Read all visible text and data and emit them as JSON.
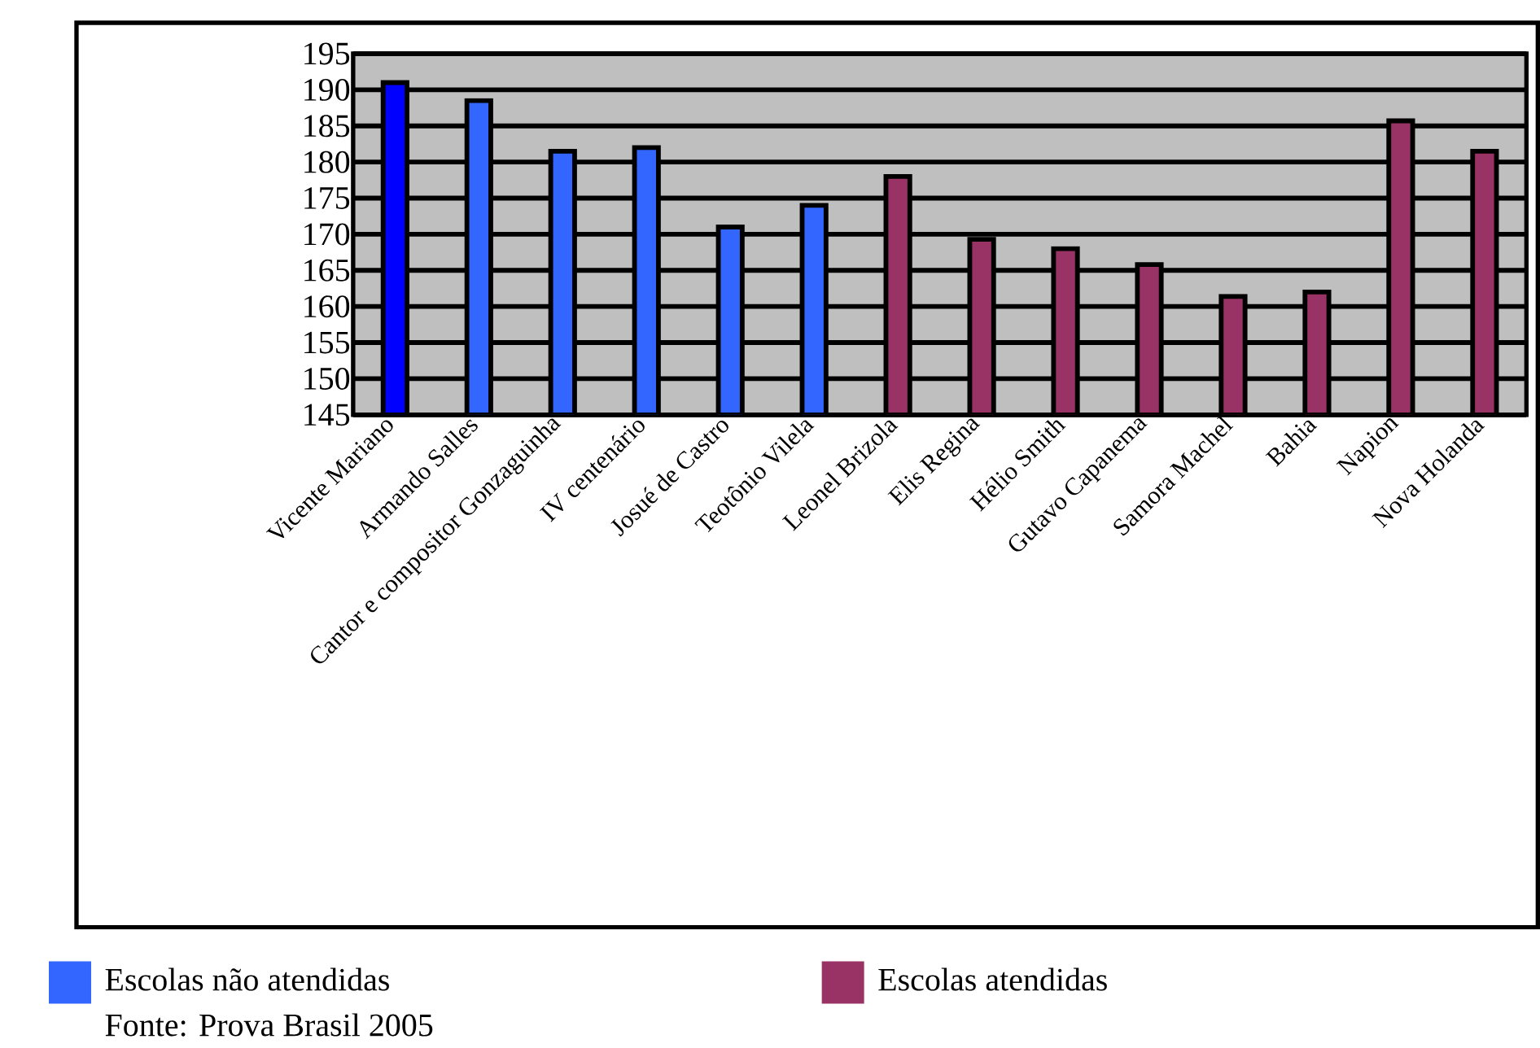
{
  "chart_data": {
    "type": "bar",
    "categories": [
      "Vicente Mariano",
      "Armando Salles",
      "Cantor e compositor Gonzaguinha",
      "IV centenário",
      "Josué de Castro",
      "Teotônio Vilela",
      "Leonel Brizola",
      "Elis Regina",
      "Hélio Smith",
      "Gutavo Capanema",
      "Samora Machel",
      "Bahia",
      "Napion",
      "Nova Holanda"
    ],
    "series": [
      {
        "name": "Escolas não atendidas",
        "color": "#3366ff",
        "colors": [
          "#0000ff",
          "#3366ff",
          "#3366ff",
          "#3366ff",
          "#3366ff",
          "#3366ff",
          null,
          null,
          null,
          null,
          null,
          null,
          null,
          null
        ],
        "values": [
          191,
          188.5,
          181.5,
          182,
          171,
          174,
          null,
          null,
          null,
          null,
          null,
          null,
          null,
          null
        ]
      },
      {
        "name": "Escolas atendidas",
        "color": "#993366",
        "values": [
          null,
          null,
          null,
          null,
          null,
          null,
          178,
          169.3,
          168,
          165.8,
          161.4,
          162,
          185.7,
          181.5
        ]
      }
    ],
    "ylim": [
      145,
      195
    ],
    "yticks": [
      145,
      150,
      155,
      160,
      165,
      170,
      175,
      180,
      185,
      190,
      195
    ],
    "grid": "y",
    "legend": "bottom",
    "annotations": [
      "Fonte: Prova Brasil 2005"
    ]
  }
}
